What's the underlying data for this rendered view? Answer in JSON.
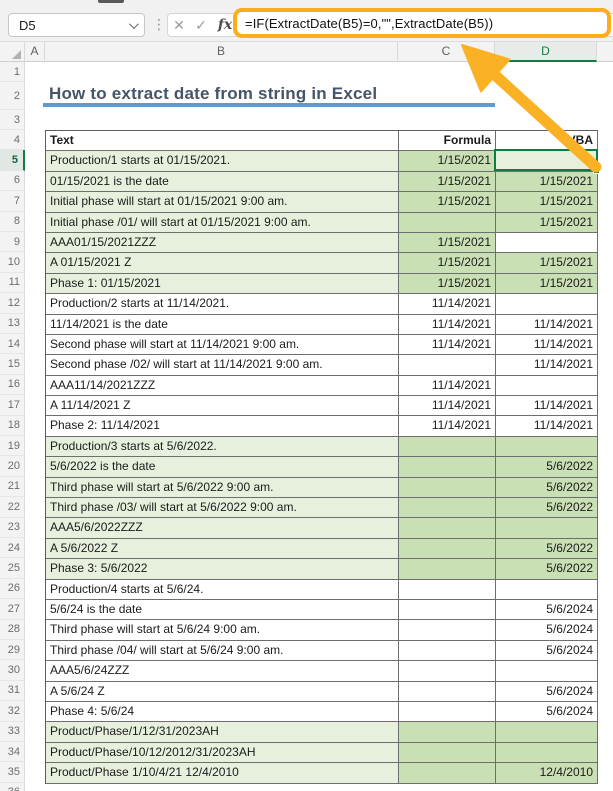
{
  "formula_bar": {
    "name_box": "D5",
    "cancel_icon": "✕",
    "enter_icon": "✓",
    "fx_icon": "fx",
    "formula": "=IF(ExtractDate(B5)=0,\"\",ExtractDate(B5))"
  },
  "title": "How to extract date from string in Excel",
  "column_headers": [
    "A",
    "B",
    "C",
    "D"
  ],
  "selected_column": "D",
  "selected_cell": "D5",
  "gutter": {
    "first_row": 1,
    "last_row": 36
  },
  "colors": {
    "accent_green": "#107C41",
    "fill_light_green": "#E7F0DD",
    "fill_dark_green": "#C9DFB4",
    "arrow_amber": "#FBB124",
    "highlight_border": "#FBAD1C",
    "title_text": "#44546A",
    "title_underline": "#5B9BD5"
  },
  "table": {
    "headers": [
      "Text",
      "Formula",
      "VBA"
    ],
    "rows": [
      {
        "n": 5,
        "text": "Production/1 starts at 01/15/2021.",
        "formula": "1/15/2021",
        "vba": "",
        "b": "L",
        "c": "D",
        "d": "L"
      },
      {
        "n": 6,
        "text": "01/15/2021 is the date",
        "formula": "1/15/2021",
        "vba": "1/15/2021",
        "b": "L",
        "c": "D",
        "d": "D"
      },
      {
        "n": 7,
        "text": "Initial phase will start at 01/15/2021 9:00 am.",
        "formula": "1/15/2021",
        "vba": "1/15/2021",
        "b": "L",
        "c": "D",
        "d": "D"
      },
      {
        "n": 8,
        "text": "Initial phase /01/ will start at 01/15/2021 9:00 am.",
        "formula": "",
        "vba": "1/15/2021",
        "b": "L",
        "c": "D",
        "d": "D"
      },
      {
        "n": 9,
        "text": "AAA01/15/2021ZZZ",
        "formula": "1/15/2021",
        "vba": "",
        "b": "L",
        "c": "D",
        "d": "W"
      },
      {
        "n": 10,
        "text": "A 01/15/2021 Z",
        "formula": "1/15/2021",
        "vba": "1/15/2021",
        "b": "L",
        "c": "D",
        "d": "D"
      },
      {
        "n": 11,
        "text": "Phase 1: 01/15/2021",
        "formula": "1/15/2021",
        "vba": "1/15/2021",
        "b": "L",
        "c": "D",
        "d": "D"
      },
      {
        "n": 12,
        "text": "Production/2 starts at 11/14/2021.",
        "formula": "11/14/2021",
        "vba": "",
        "b": "W",
        "c": "W",
        "d": "W"
      },
      {
        "n": 13,
        "text": "11/14/2021 is the date",
        "formula": "11/14/2021",
        "vba": "11/14/2021",
        "b": "W",
        "c": "W",
        "d": "W"
      },
      {
        "n": 14,
        "text": "Second phase will start at 11/14/2021 9:00 am.",
        "formula": "11/14/2021",
        "vba": "11/14/2021",
        "b": "W",
        "c": "W",
        "d": "W"
      },
      {
        "n": 15,
        "text": "Second phase /02/ will start at 11/14/2021 9:00 am.",
        "formula": "",
        "vba": "11/14/2021",
        "b": "W",
        "c": "W",
        "d": "W"
      },
      {
        "n": 16,
        "text": "AAA11/14/2021ZZZ",
        "formula": "11/14/2021",
        "vba": "",
        "b": "W",
        "c": "W",
        "d": "W"
      },
      {
        "n": 17,
        "text": "A 11/14/2021 Z",
        "formula": "11/14/2021",
        "vba": "11/14/2021",
        "b": "W",
        "c": "W",
        "d": "W"
      },
      {
        "n": 18,
        "text": "Phase 2: 11/14/2021",
        "formula": "11/14/2021",
        "vba": "11/14/2021",
        "b": "W",
        "c": "W",
        "d": "W"
      },
      {
        "n": 19,
        "text": "Production/3 starts at 5/6/2022.",
        "formula": "",
        "vba": "",
        "b": "L",
        "c": "D",
        "d": "D"
      },
      {
        "n": 20,
        "text": "5/6/2022 is the date",
        "formula": "",
        "vba": "5/6/2022",
        "b": "L",
        "c": "D",
        "d": "D"
      },
      {
        "n": 21,
        "text": "Third phase will start at 5/6/2022 9:00 am.",
        "formula": "",
        "vba": "5/6/2022",
        "b": "L",
        "c": "D",
        "d": "D"
      },
      {
        "n": 22,
        "text": "Third phase /03/ will start at 5/6/2022 9:00 am.",
        "formula": "",
        "vba": "5/6/2022",
        "b": "L",
        "c": "D",
        "d": "D"
      },
      {
        "n": 23,
        "text": "AAA5/6/2022ZZZ",
        "formula": "",
        "vba": "",
        "b": "L",
        "c": "D",
        "d": "D"
      },
      {
        "n": 24,
        "text": "A 5/6/2022 Z",
        "formula": "",
        "vba": "5/6/2022",
        "b": "L",
        "c": "D",
        "d": "D"
      },
      {
        "n": 25,
        "text": "Phase 3: 5/6/2022",
        "formula": "",
        "vba": "5/6/2022",
        "b": "L",
        "c": "D",
        "d": "D"
      },
      {
        "n": 26,
        "text": "Production/4 starts at 5/6/24.",
        "formula": "",
        "vba": "",
        "b": "W",
        "c": "W",
        "d": "W"
      },
      {
        "n": 27,
        "text": "5/6/24 is the date",
        "formula": "",
        "vba": "5/6/2024",
        "b": "W",
        "c": "W",
        "d": "W"
      },
      {
        "n": 28,
        "text": "Third phase will start at 5/6/24 9:00 am.",
        "formula": "",
        "vba": "5/6/2024",
        "b": "W",
        "c": "W",
        "d": "W"
      },
      {
        "n": 29,
        "text": "Third phase /04/ will start at 5/6/24 9:00 am.",
        "formula": "",
        "vba": "5/6/2024",
        "b": "W",
        "c": "W",
        "d": "W"
      },
      {
        "n": 30,
        "text": "AAA5/6/24ZZZ",
        "formula": "",
        "vba": "",
        "b": "W",
        "c": "W",
        "d": "W"
      },
      {
        "n": 31,
        "text": "A 5/6/24 Z",
        "formula": "",
        "vba": "5/6/2024",
        "b": "W",
        "c": "W",
        "d": "W"
      },
      {
        "n": 32,
        "text": "Phase 4: 5/6/24",
        "formula": "",
        "vba": "5/6/2024",
        "b": "W",
        "c": "W",
        "d": "W"
      },
      {
        "n": 33,
        "text": "Product/Phase/1/12/31/2023AH",
        "formula": "",
        "vba": "",
        "b": "L",
        "c": "D",
        "d": "D"
      },
      {
        "n": 34,
        "text": "Product/Phase/10/12/2012/31/2023AH",
        "formula": "",
        "vba": "",
        "b": "L",
        "c": "D",
        "d": "D"
      },
      {
        "n": 35,
        "text": "Product/Phase 1/10/4/21 12/4/2010",
        "formula": "",
        "vba": "12/4/2010",
        "b": "L",
        "c": "D",
        "d": "D"
      }
    ]
  }
}
